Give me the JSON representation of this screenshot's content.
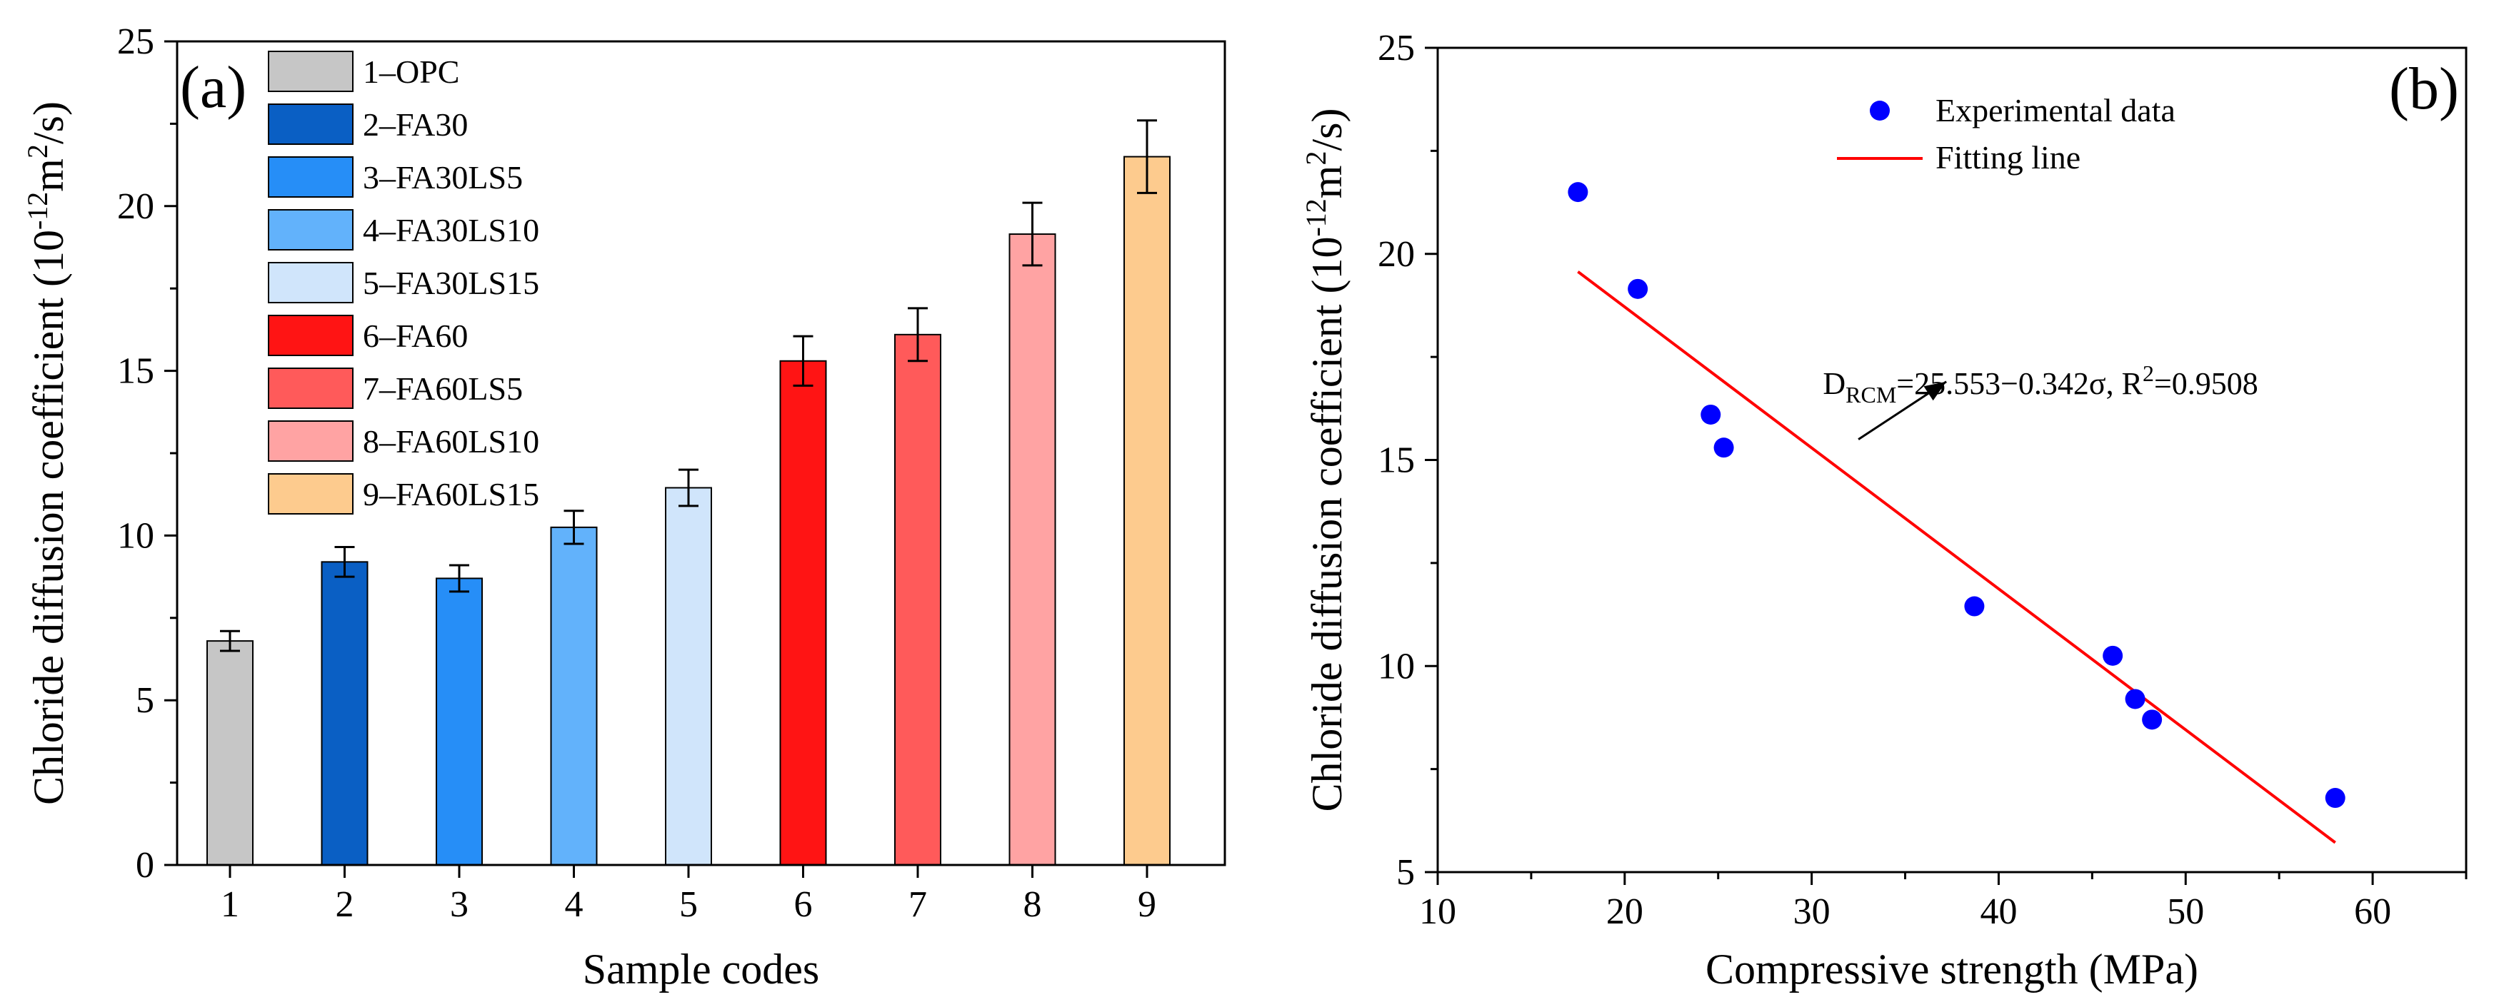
{
  "chart_data": [
    {
      "type": "bar",
      "panel_label": "(a)",
      "title": "",
      "xlabel": "Sample codes",
      "ylabel": "Chloride diffusion coefficient (10",
      "ylabel_exp": "-12",
      "ylabel_tail": "m",
      "ylabel_exp2": "2",
      "ylabel_end": "/s)",
      "categories": [
        "1",
        "2",
        "3",
        "4",
        "5",
        "6",
        "7",
        "8",
        "9"
      ],
      "values": [
        6.8,
        9.2,
        8.7,
        10.25,
        11.45,
        15.3,
        16.1,
        19.15,
        21.5
      ],
      "errors": [
        0.3,
        0.45,
        0.4,
        0.5,
        0.55,
        0.75,
        0.8,
        0.95,
        1.1
      ],
      "colors": [
        "#c6c6c6",
        "#0a5fc4",
        "#268ef7",
        "#62b2fb",
        "#d0e5fb",
        "#ff1414",
        "#ff5a5a",
        "#ffa3a3",
        "#fdcb8e"
      ],
      "legend": [
        "1–OPC",
        "2–FA30",
        "3–FA30LS5",
        "4–FA30LS10",
        "5–FA30LS15",
        "6–FA60",
        "7–FA60LS5",
        "8–FA60LS10",
        "9–FA60LS15"
      ],
      "legend_position": "top-left",
      "ylim": [
        0,
        25
      ],
      "yticks": [
        "0",
        "5",
        "10",
        "15",
        "20",
        "25"
      ],
      "grid": false
    },
    {
      "type": "scatter",
      "panel_label": "(b)",
      "title": "",
      "xlabel": "Compressive strength (MPa)",
      "ylabel": "Chloride diffusion coefficient (10",
      "ylabel_exp": "-12",
      "ylabel_tail": "m",
      "ylabel_exp2": "2",
      "ylabel_end": "/s)",
      "series": [
        {
          "name": "Experimental data",
          "x": [
            17.5,
            20.7,
            24.6,
            25.3,
            38.7,
            46.1,
            47.3,
            48.2,
            58.0
          ],
          "y": [
            21.5,
            19.15,
            16.1,
            15.3,
            11.45,
            10.25,
            9.2,
            8.7,
            6.8
          ],
          "color": "#0000ff"
        }
      ],
      "fit": {
        "name": "Fitting line",
        "intercept": 25.553,
        "slope": -0.342,
        "x_range": [
          17.5,
          58.0
        ],
        "color": "#ff0000"
      },
      "annotation": {
        "prefix": "D",
        "subscript": "RCM",
        "mid": "=25.553−0.342σ, R",
        "superscript": "2",
        "suffix": "=0.9508"
      },
      "legend_position": "top-center",
      "xlim": [
        10,
        65
      ],
      "ylim": [
        5,
        25
      ],
      "xticks": [
        "10",
        "20",
        "30",
        "40",
        "50",
        "60"
      ],
      "yticks": [
        "5",
        "10",
        "15",
        "20",
        "25"
      ],
      "grid": false
    }
  ]
}
